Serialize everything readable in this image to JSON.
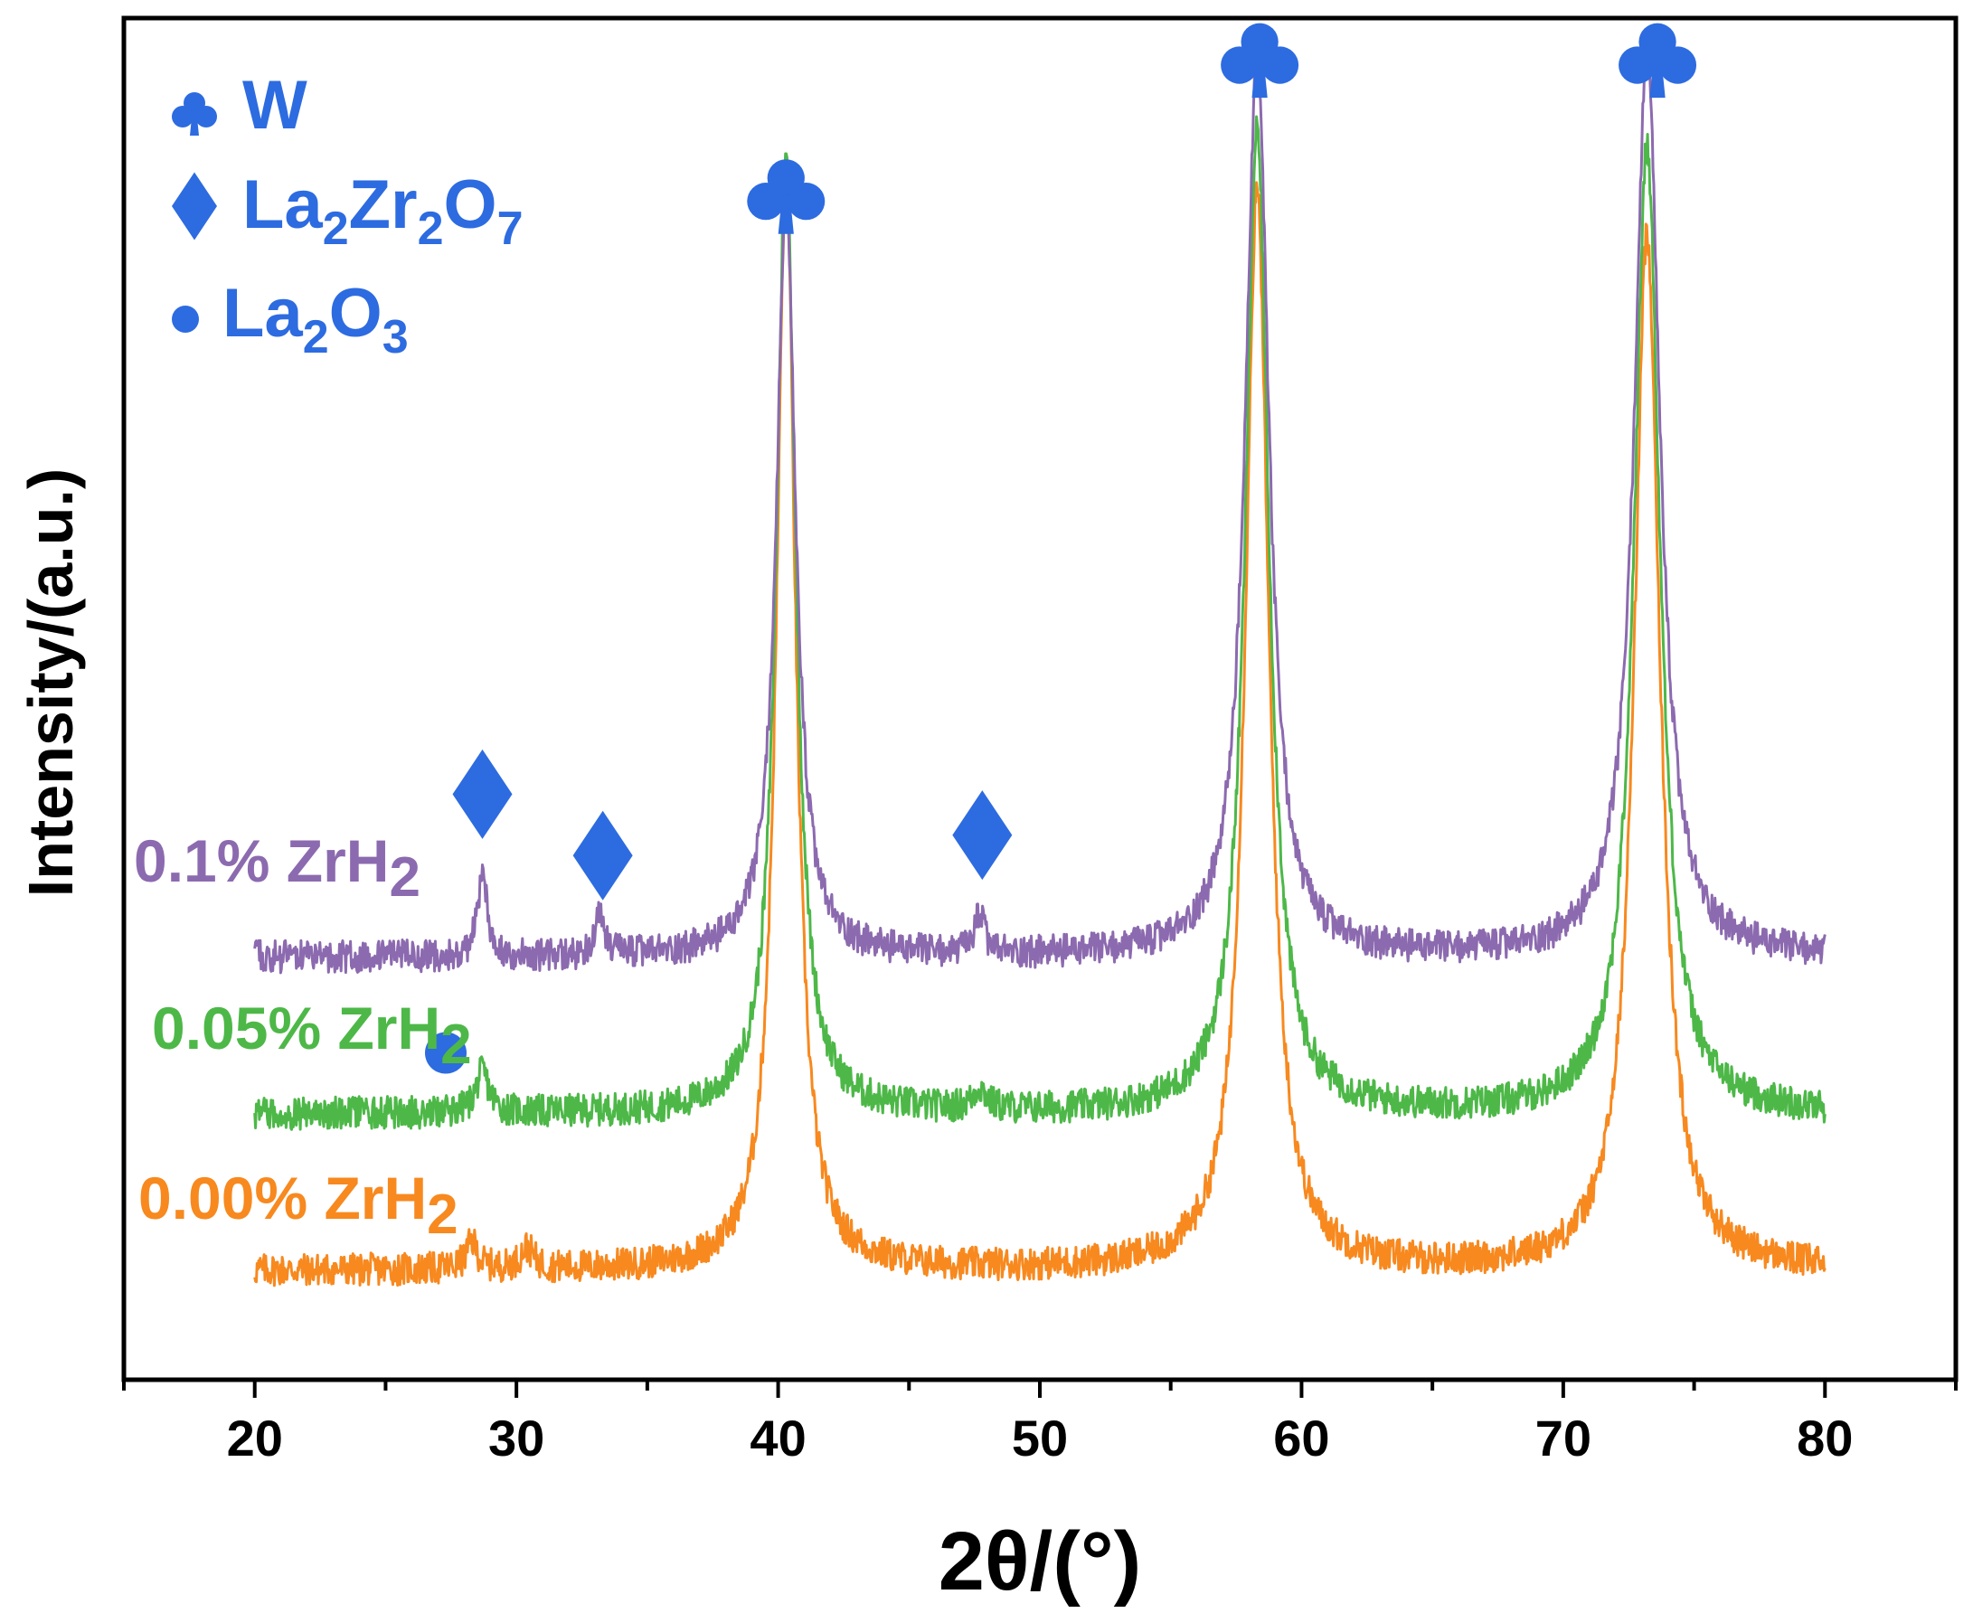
{
  "chart_data": {
    "type": "line",
    "title": "",
    "xlabel": "2θ/(°)",
    "ylabel": "Intensity/(a.u.)",
    "xlim": [
      15,
      85
    ],
    "ylim": [
      0,
      100
    ],
    "xticks": [
      20,
      30,
      40,
      50,
      60,
      70,
      80
    ],
    "xtick_labels": [
      "20",
      "30",
      "40",
      "50",
      "60",
      "70",
      "80"
    ],
    "minor_xtick_step": 5,
    "y_ticks_shown": false,
    "grid": false,
    "x_range": [
      20,
      80
    ],
    "series": [
      {
        "name": "0.00% ZrH2",
        "label_main": "0.00% ZrH",
        "label_sub": "2",
        "color": "#F7891F",
        "baseline": 8,
        "noise": 1.2,
        "peaks": [
          {
            "x": 28.3,
            "height": 2.0,
            "width": 0.25
          },
          {
            "x": 30.4,
            "height": 1.5,
            "width": 0.3
          },
          {
            "x": 40.3,
            "height": 80,
            "width": 0.45
          },
          {
            "x": 58.3,
            "height": 79,
            "width": 0.55
          },
          {
            "x": 73.2,
            "height": 76,
            "width": 0.6
          }
        ]
      },
      {
        "name": "0.05% ZrH2",
        "label_main": "0.05% ZrH",
        "label_sub": "2",
        "color": "#4DB848",
        "baseline": 19.5,
        "noise": 1.2,
        "peaks": [
          {
            "x": 28.7,
            "height": 3.0,
            "width": 0.3
          },
          {
            "x": 47.7,
            "height": 1.5,
            "width": 0.3
          },
          {
            "x": 40.3,
            "height": 70,
            "width": 0.45
          },
          {
            "x": 58.3,
            "height": 72,
            "width": 0.55
          },
          {
            "x": 73.2,
            "height": 71,
            "width": 0.6
          }
        ]
      },
      {
        "name": "0.1% ZrH2",
        "label_main": "0.1% ZrH",
        "label_sub": "2",
        "color": "#8C6AAF",
        "baseline": 31,
        "noise": 1.2,
        "peaks": [
          {
            "x": 28.7,
            "height": 6.0,
            "width": 0.22
          },
          {
            "x": 33.2,
            "height": 3.0,
            "width": 0.2
          },
          {
            "x": 47.7,
            "height": 3.0,
            "width": 0.2
          },
          {
            "x": 40.3,
            "height": 55,
            "width": 0.45
          },
          {
            "x": 58.3,
            "height": 66,
            "width": 0.55
          },
          {
            "x": 73.2,
            "height": 66,
            "width": 0.6
          }
        ]
      }
    ],
    "phase_markers": [
      {
        "phase": "W",
        "symbol": "club",
        "x": 40.3,
        "y": 87
      },
      {
        "phase": "W",
        "symbol": "club",
        "x": 58.4,
        "y": 97
      },
      {
        "phase": "W",
        "symbol": "club",
        "x": 73.6,
        "y": 97
      },
      {
        "phase": "La2Zr2O7",
        "symbol": "diamond",
        "x": 28.7,
        "y": 43
      },
      {
        "phase": "La2Zr2O7",
        "symbol": "diamond",
        "x": 33.3,
        "y": 38.5
      },
      {
        "phase": "La2Zr2O7",
        "symbol": "diamond",
        "x": 47.8,
        "y": 40
      },
      {
        "phase": "La2O3",
        "symbol": "circle",
        "x": 27.3,
        "y": 24
      }
    ],
    "legend": {
      "placement": "top-left",
      "color": "#2D6BE0",
      "entries": [
        {
          "symbol": "club",
          "text": "W",
          "parts": [
            "W"
          ]
        },
        {
          "symbol": "diamond",
          "text": "La2Zr2O7",
          "parts": [
            "La",
            "2",
            "Zr",
            "2",
            "O",
            "7"
          ]
        },
        {
          "symbol": "circle",
          "text": "La2O3",
          "parts": [
            "La",
            "2",
            "O",
            "3"
          ]
        }
      ]
    }
  }
}
